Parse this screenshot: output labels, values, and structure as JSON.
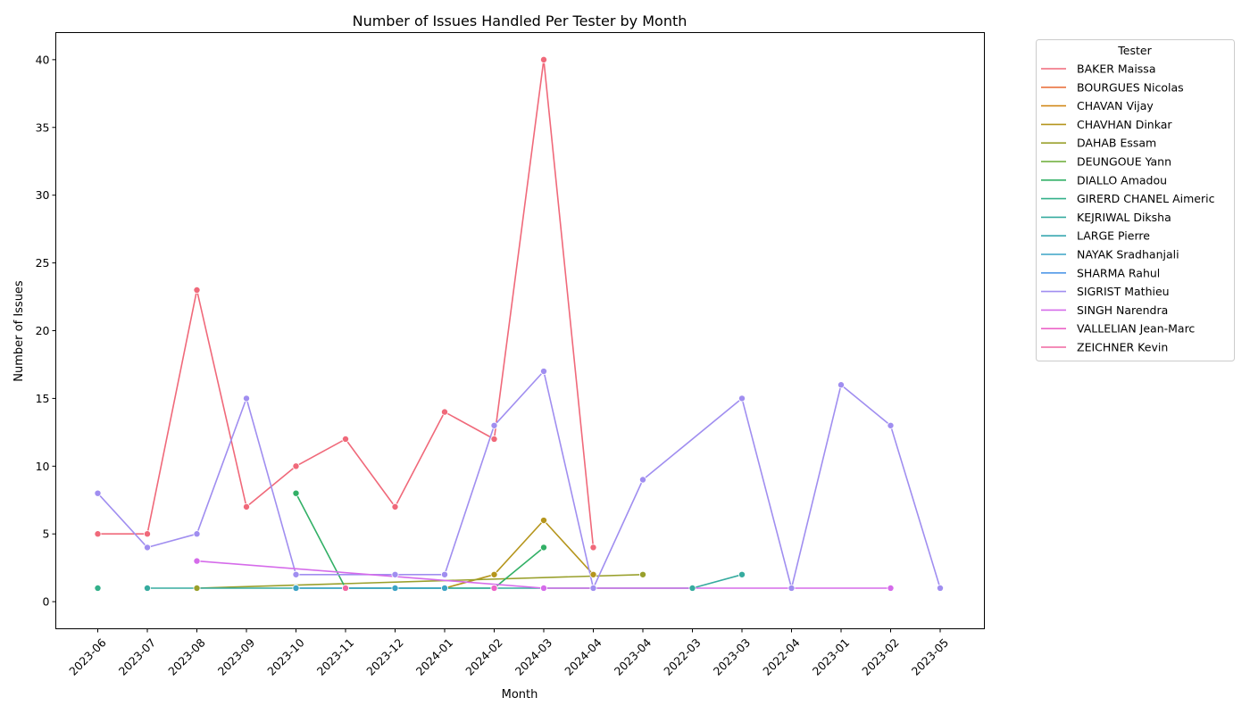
{
  "chart_data": {
    "type": "line",
    "title": "Number of Issues Handled Per Tester by Month",
    "xlabel": "Month",
    "ylabel": "Number of Issues",
    "categories": [
      "2023-06",
      "2023-07",
      "2023-08",
      "2023-09",
      "2023-10",
      "2023-11",
      "2023-12",
      "2024-01",
      "2024-02",
      "2024-03",
      "2024-04",
      "2023-04",
      "2022-03",
      "2023-03",
      "2022-04",
      "2023-01",
      "2023-02",
      "2023-05"
    ],
    "ylim": [
      -2,
      42
    ],
    "yticks": [
      0,
      5,
      10,
      15,
      20,
      25,
      30,
      35,
      40
    ],
    "legend_title": "Tester",
    "legend_position": "outside-upper-right",
    "series": [
      {
        "name": "BAKER Maissa",
        "color": "#f0697a",
        "points": [
          [
            0,
            5
          ],
          [
            1,
            5
          ],
          [
            2,
            23
          ],
          [
            3,
            7
          ],
          [
            4,
            10
          ],
          [
            5,
            12
          ],
          [
            6,
            7
          ],
          [
            7,
            14
          ],
          [
            8,
            12
          ],
          [
            9,
            40
          ],
          [
            10,
            4
          ]
        ]
      },
      {
        "name": "BOURGUES Nicolas",
        "color": "#ea7340",
        "points": []
      },
      {
        "name": "CHAVAN Vijay",
        "color": "#d1891a",
        "points": []
      },
      {
        "name": "CHAVHAN Dinkar",
        "color": "#b5951c",
        "points": [
          [
            7,
            1
          ],
          [
            8,
            2
          ],
          [
            9,
            6
          ],
          [
            10,
            2
          ]
        ]
      },
      {
        "name": "DAHAB Essam",
        "color": "#99a02c",
        "points": [
          [
            2,
            1
          ],
          [
            11,
            2
          ]
        ]
      },
      {
        "name": "DEUNGOUE Yann",
        "color": "#68ac33",
        "points": []
      },
      {
        "name": "DIALLO Amadou",
        "color": "#32b066",
        "points": [
          [
            4,
            8
          ],
          [
            5,
            1
          ],
          [
            8,
            1
          ],
          [
            9,
            4
          ]
        ]
      },
      {
        "name": "GIRERD CHANEL Aimeric",
        "color": "#33b08a",
        "points": [
          [
            0,
            1
          ]
        ]
      },
      {
        "name": "KEJRIWAL Diksha",
        "color": "#36ab9f",
        "points": [
          [
            1,
            1
          ],
          [
            12,
            1
          ],
          [
            13,
            2
          ]
        ]
      },
      {
        "name": "LARGE Pierre",
        "color": "#38a8b0",
        "points": [
          [
            4,
            1
          ]
        ]
      },
      {
        "name": "NAYAK Sradhanjali",
        "color": "#3aa3c5",
        "points": [
          [
            4,
            1
          ],
          [
            5,
            1
          ],
          [
            6,
            1
          ],
          [
            7,
            1
          ]
        ]
      },
      {
        "name": "SHARMA Rahul",
        "color": "#5098e8",
        "points": []
      },
      {
        "name": "SIGRIST Mathieu",
        "color": "#a08ef0",
        "points": [
          [
            0,
            8
          ],
          [
            1,
            4
          ],
          [
            2,
            5
          ],
          [
            3,
            15
          ],
          [
            4,
            2
          ],
          [
            6,
            2
          ],
          [
            7,
            2
          ],
          [
            8,
            13
          ],
          [
            9,
            17
          ],
          [
            10,
            1
          ],
          [
            11,
            9
          ],
          [
            13,
            15
          ],
          [
            14,
            1
          ],
          [
            15,
            16
          ],
          [
            16,
            13
          ],
          [
            17,
            1
          ]
        ]
      },
      {
        "name": "SINGH Narendra",
        "color": "#d56bea",
        "points": [
          [
            2,
            3
          ],
          [
            9,
            1
          ],
          [
            16,
            1
          ]
        ]
      },
      {
        "name": "VALLELIAN Jean-Marc",
        "color": "#ec64c8",
        "points": [
          [
            8,
            1
          ]
        ]
      },
      {
        "name": "ZEICHNER Kevin",
        "color": "#f066a0",
        "points": [
          [
            5,
            1
          ]
        ]
      }
    ]
  }
}
